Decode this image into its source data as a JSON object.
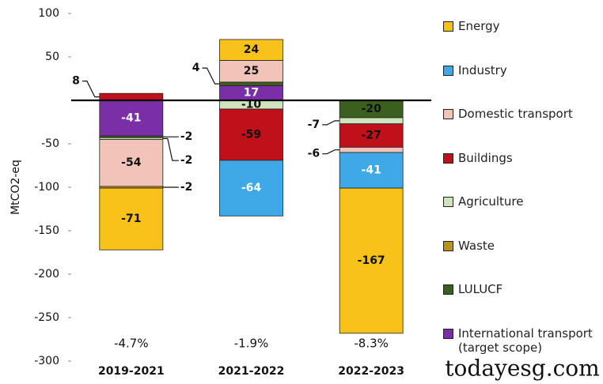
{
  "chart_data": {
    "type": "stacked-bar",
    "ylabel": "MtCO2-eq",
    "categories": [
      "2019-2021",
      "2021-2022",
      "2022-2023"
    ],
    "series": [
      {
        "name": "Energy",
        "color": "#f9c21a",
        "values": [
          -71,
          24,
          -167
        ]
      },
      {
        "name": "Industry",
        "color": "#3fa9e8",
        "values": [
          0,
          -64,
          -41
        ]
      },
      {
        "name": "Domestic transport",
        "color": "#f2c4b9",
        "values": [
          -54,
          25,
          -6
        ]
      },
      {
        "name": "Buildings",
        "color": "#c0101a",
        "values": [
          8,
          -59,
          -27
        ]
      },
      {
        "name": "Agriculture",
        "color": "#cfe4bc",
        "values": [
          -2,
          -10,
          -7
        ]
      },
      {
        "name": "Waste",
        "color": "#b8941c",
        "values": [
          -2,
          0,
          0
        ]
      },
      {
        "name": "LULUCF",
        "color": "#3b5f1f",
        "values": [
          -2,
          4,
          -20
        ]
      },
      {
        "name": "International transport (target scope)",
        "color": "#7b2fa6",
        "values": [
          -41,
          17,
          0
        ]
      }
    ],
    "annotations": [
      "-4.7%",
      "-1.9%",
      "-8.3%"
    ],
    "ylim": [
      -300,
      100
    ],
    "yticks": [
      100,
      50,
      -50,
      -100,
      -150,
      -200,
      -250,
      -300
    ],
    "watermark": "todayesg.com"
  }
}
